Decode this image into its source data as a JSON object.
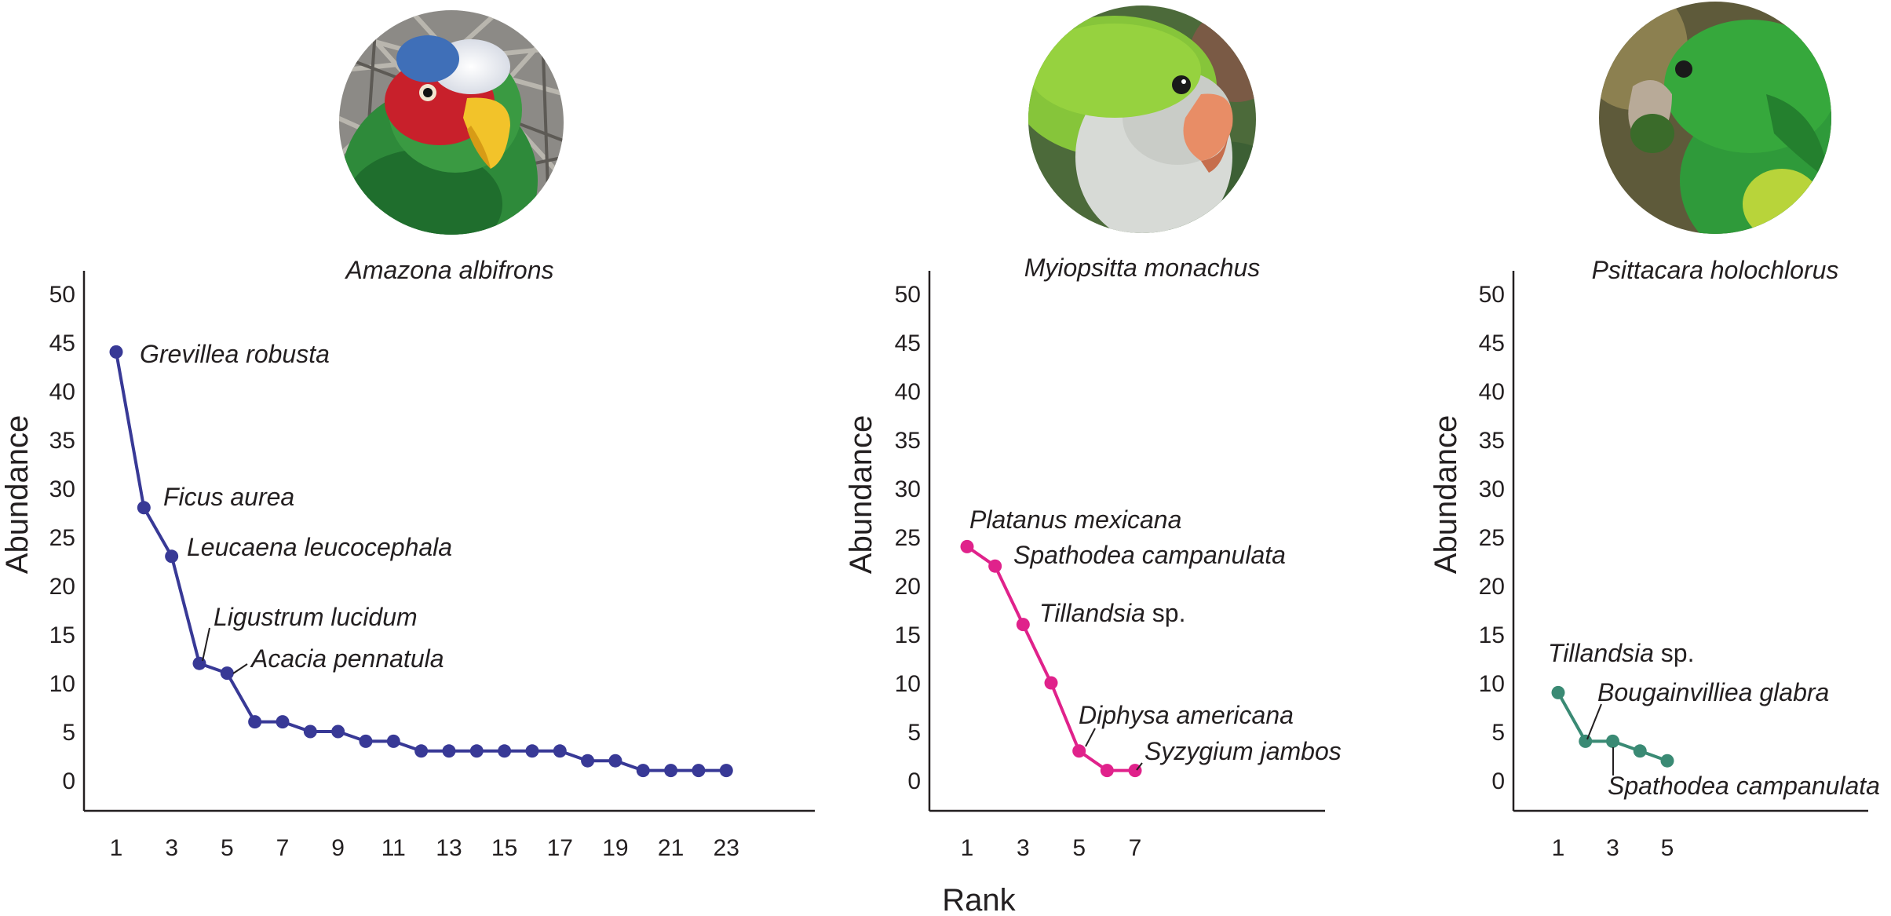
{
  "figure": {
    "shared_xlabel": "Rank"
  },
  "chart_data": [
    {
      "type": "line",
      "title": "Amazona albifrons",
      "ylabel": "Abundance",
      "xlabel": "",
      "ylim": [
        0,
        50
      ],
      "yticks": [
        0,
        5,
        10,
        15,
        20,
        25,
        30,
        35,
        40,
        45,
        50
      ],
      "xticks": [
        1,
        3,
        5,
        7,
        9,
        11,
        13,
        15,
        17,
        19,
        21,
        23
      ],
      "color": "#383996",
      "photo": "parrot-photo-white-fronted-amazon",
      "x": [
        1,
        2,
        3,
        4,
        5,
        6,
        7,
        8,
        9,
        10,
        11,
        12,
        13,
        14,
        15,
        16,
        17,
        18,
        19,
        20,
        21,
        22,
        23
      ],
      "y": [
        44,
        28,
        23,
        12,
        11,
        6,
        6,
        5,
        5,
        4,
        4,
        3,
        3,
        3,
        3,
        3,
        3,
        2,
        2,
        1,
        1,
        1,
        1
      ],
      "annotations": [
        {
          "text": "Grevillea robusta",
          "suffix": "",
          "x": 1,
          "y": 44
        },
        {
          "text": "Ficus aurea",
          "suffix": "",
          "x": 2,
          "y": 28
        },
        {
          "text": "Leucaena leucocephala",
          "suffix": "",
          "x": 3,
          "y": 23
        },
        {
          "text": "Ligustrum lucidum",
          "suffix": "",
          "x": 4,
          "y": 12
        },
        {
          "text": "Acacia pennatula",
          "suffix": "",
          "x": 5,
          "y": 11
        }
      ]
    },
    {
      "type": "line",
      "title": "Myiopsitta monachus",
      "ylabel": "Abundance",
      "xlabel": "",
      "ylim": [
        0,
        50
      ],
      "yticks": [
        0,
        5,
        10,
        15,
        20,
        25,
        30,
        35,
        40,
        45,
        50
      ],
      "xticks": [
        1,
        3,
        5,
        7
      ],
      "color": "#e0228b",
      "photo": "parrot-photo-monk-parakeet",
      "x": [
        1,
        2,
        3,
        4,
        5,
        6,
        7
      ],
      "y": [
        24,
        22,
        16,
        10,
        3,
        1,
        1
      ],
      "annotations": [
        {
          "text": "Platanus mexicana",
          "suffix": "",
          "x": 1,
          "y": 24
        },
        {
          "text": "Spathodea campanulata",
          "suffix": "",
          "x": 2,
          "y": 22
        },
        {
          "text": "Tillandsia",
          "suffix": " sp.",
          "x": 3,
          "y": 16
        },
        {
          "text": "Diphysa americana",
          "suffix": "",
          "x": 5,
          "y": 3
        },
        {
          "text": "Syzygium jambos",
          "suffix": "",
          "x": 7,
          "y": 1
        }
      ]
    },
    {
      "type": "line",
      "title": "Psittacara holochlorus",
      "ylabel": "Abundance",
      "xlabel": "",
      "ylim": [
        0,
        50
      ],
      "yticks": [
        0,
        5,
        10,
        15,
        20,
        25,
        30,
        35,
        40,
        45,
        50
      ],
      "xticks": [
        1,
        3,
        5
      ],
      "color": "#3a8a74",
      "photo": "parrot-photo-green-parakeet",
      "x": [
        1,
        2,
        3,
        4,
        5
      ],
      "y": [
        9,
        4,
        4,
        3,
        2
      ],
      "annotations": [
        {
          "text": "Tillandsia",
          "suffix": " sp.",
          "x": 1,
          "y": 9
        },
        {
          "text": "Bougainvilliea glabra",
          "suffix": "",
          "x": 2,
          "y": 4
        },
        {
          "text": "Spathodea campanulata",
          "suffix": "",
          "x": 3,
          "y": 4
        }
      ]
    }
  ]
}
